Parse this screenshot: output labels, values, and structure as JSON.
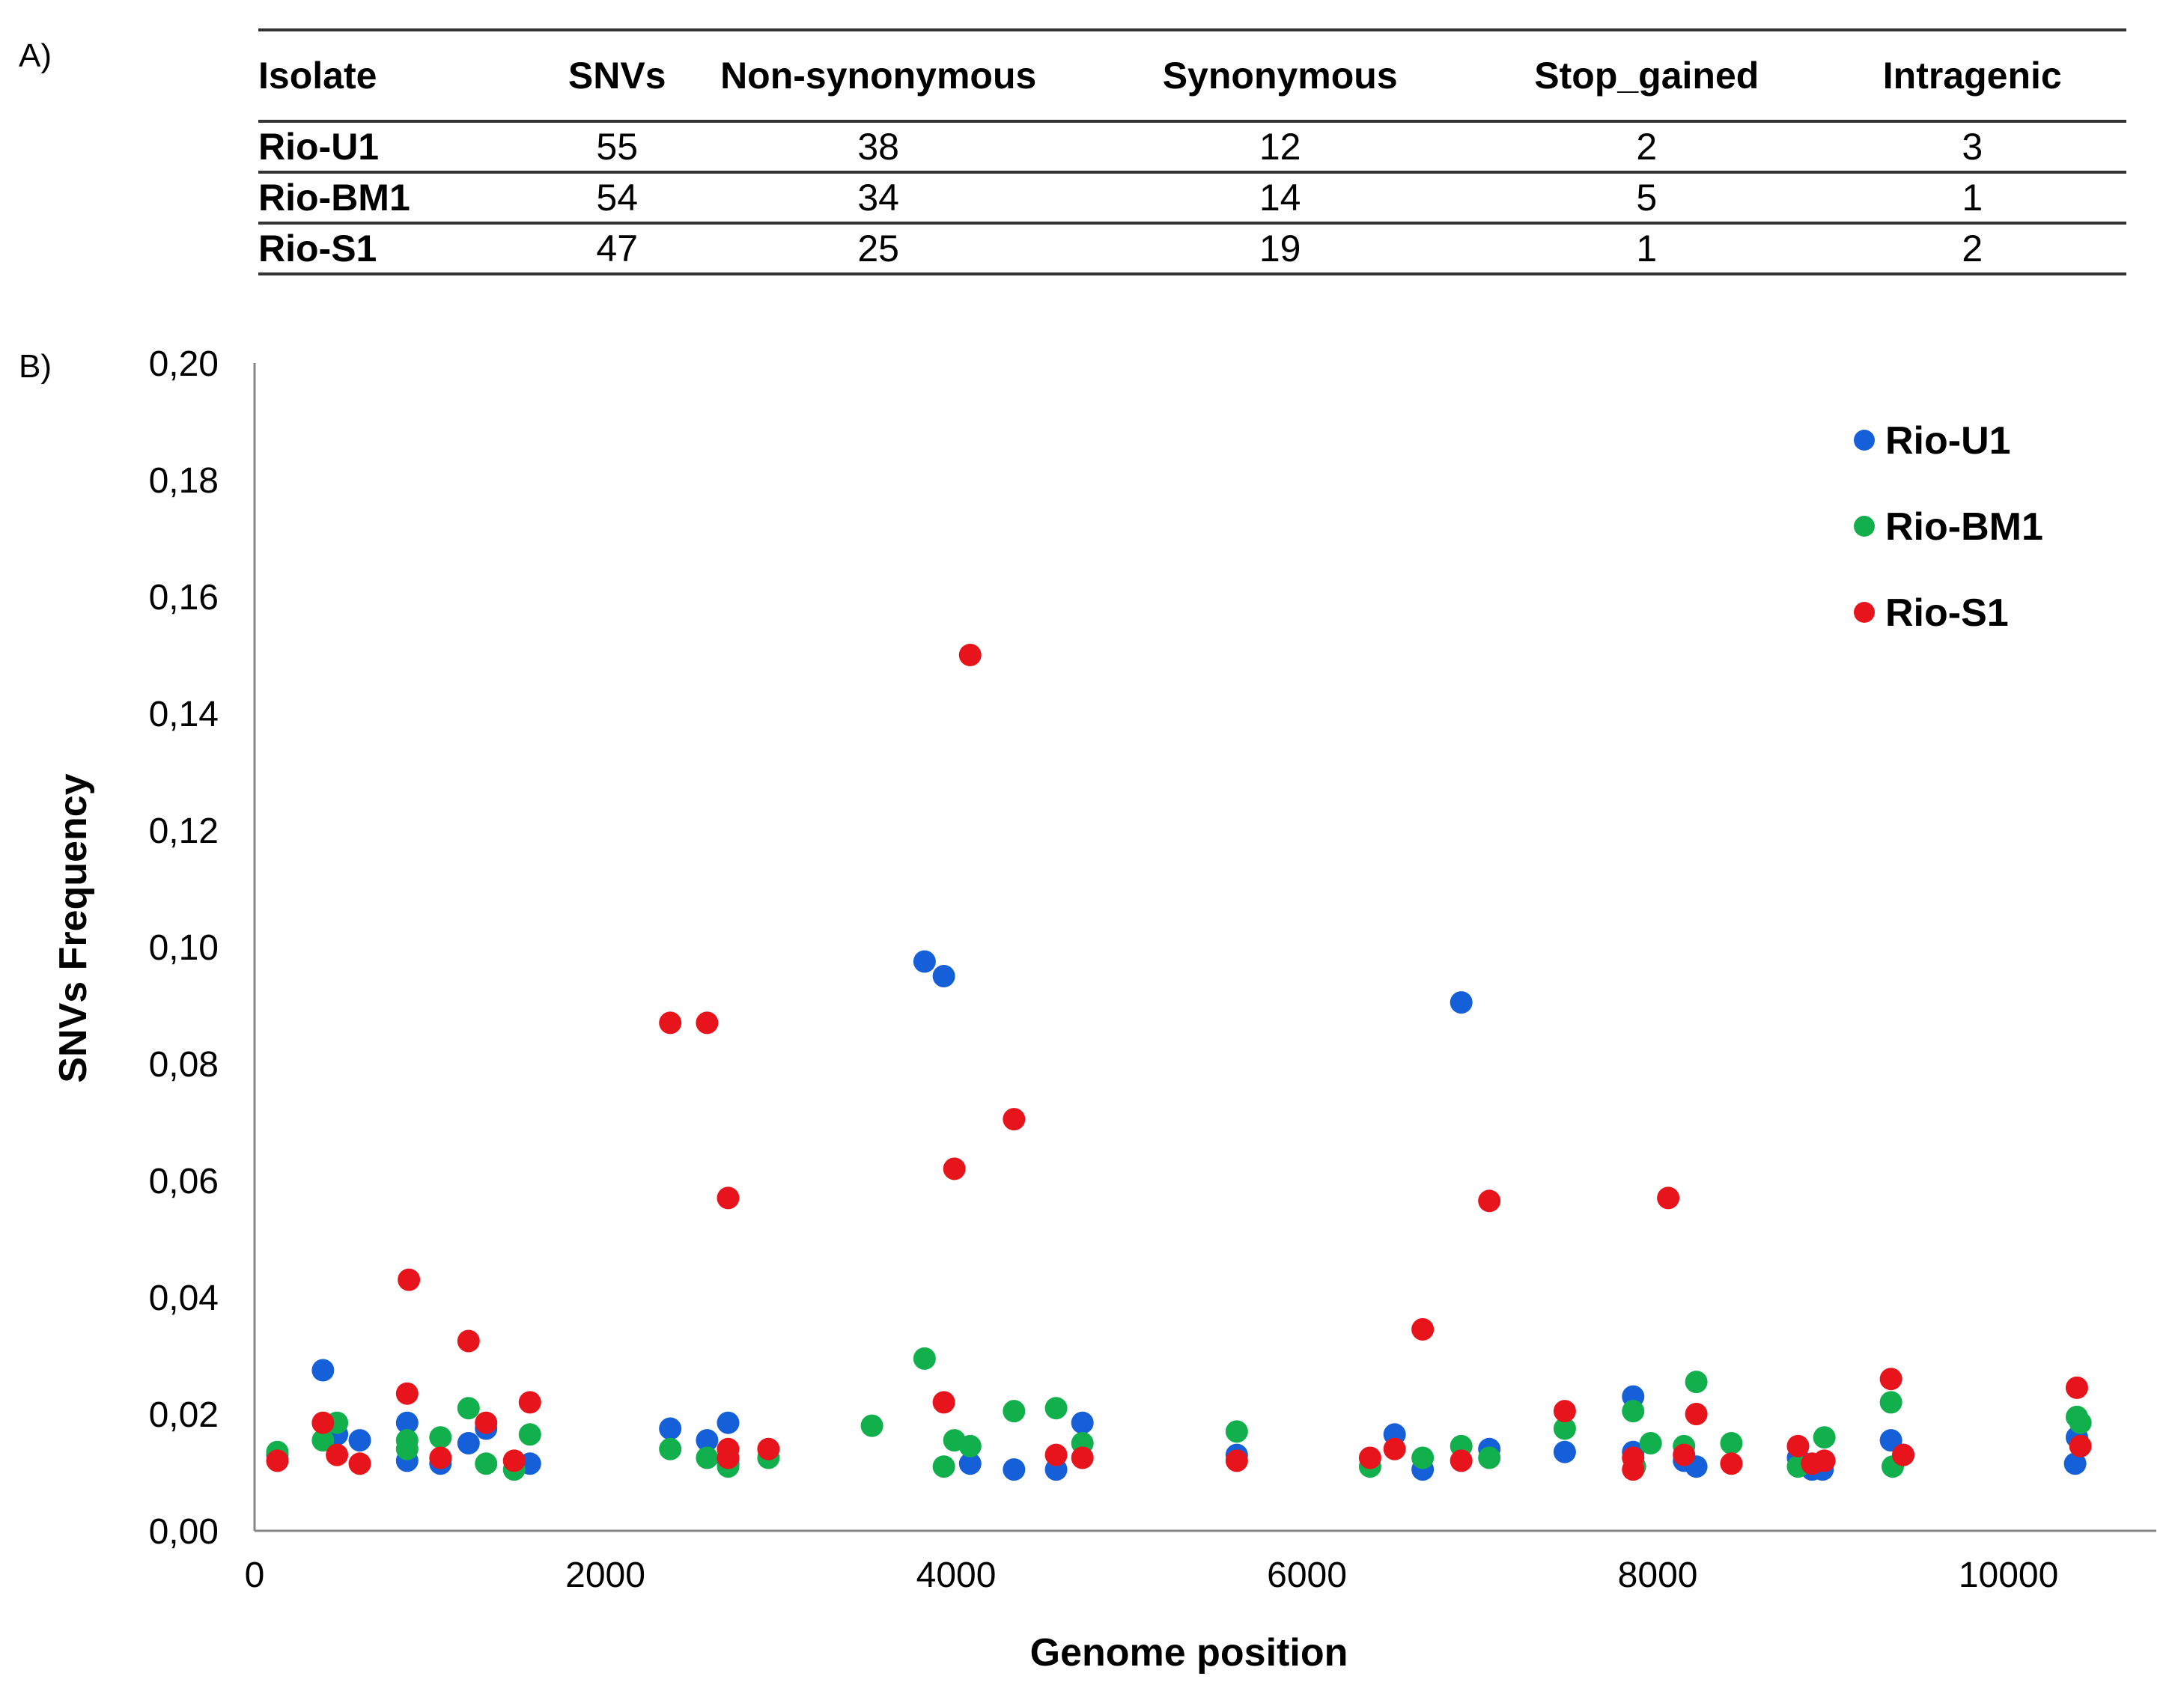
{
  "panel_labels": {
    "a": "A)",
    "b": "B)"
  },
  "table": {
    "columns": [
      "Isolate",
      "SNVs",
      "Non-synonymous",
      "Synonymous",
      "Stop_gained",
      "Intragenic"
    ],
    "rows": [
      [
        "Rio-U1",
        "55",
        "38",
        "12",
        "2",
        "3"
      ],
      [
        "Rio-BM1",
        "54",
        "34",
        "14",
        "5",
        "1"
      ],
      [
        "Rio-S1",
        "47",
        "25",
        "19",
        "1",
        "2"
      ]
    ]
  },
  "chart_data": {
    "type": "scatter",
    "title": "",
    "xlabel": "Genome position",
    "ylabel": "SNVs Frequency",
    "xlim": [
      0,
      10800
    ],
    "ylim": [
      0,
      0.2
    ],
    "xticks": [
      0,
      2000,
      4000,
      6000,
      8000,
      10000
    ],
    "xtick_labels": [
      "0",
      "2000",
      "4000",
      "6000",
      "8000",
      "10000"
    ],
    "yticks": [
      0,
      0.02,
      0.04,
      0.06,
      0.08,
      0.1,
      0.12,
      0.14,
      0.16,
      0.18,
      0.2
    ],
    "ytick_labels": [
      "0,00",
      "0,02",
      "0,04",
      "0,06",
      "0,08",
      "0,10",
      "0,12",
      "0,14",
      "0,16",
      "0,18",
      "0,20"
    ],
    "grid": false,
    "legend_position": "top-right",
    "series": [
      {
        "name": "Rio-U1",
        "color": "#1560d8",
        "points": [
          [
            130,
            0.013
          ],
          [
            390,
            0.0275
          ],
          [
            470,
            0.0165
          ],
          [
            600,
            0.0155
          ],
          [
            870,
            0.0185
          ],
          [
            870,
            0.012
          ],
          [
            1060,
            0.0115
          ],
          [
            1220,
            0.015
          ],
          [
            1320,
            0.0175
          ],
          [
            1570,
            0.0115
          ],
          [
            2370,
            0.0175
          ],
          [
            2580,
            0.0155
          ],
          [
            2700,
            0.0185
          ],
          [
            2700,
            0.0115
          ],
          [
            3820,
            0.0975
          ],
          [
            3930,
            0.095
          ],
          [
            4080,
            0.0115
          ],
          [
            4330,
            0.0105
          ],
          [
            4570,
            0.0105
          ],
          [
            4720,
            0.0185
          ],
          [
            5600,
            0.013
          ],
          [
            6500,
            0.0165
          ],
          [
            6660,
            0.0105
          ],
          [
            6880,
            0.0905
          ],
          [
            7040,
            0.014
          ],
          [
            7470,
            0.0135
          ],
          [
            7860,
            0.023
          ],
          [
            7860,
            0.0135
          ],
          [
            8150,
            0.012
          ],
          [
            8220,
            0.011
          ],
          [
            8800,
            0.0125
          ],
          [
            8880,
            0.0105
          ],
          [
            8940,
            0.0105
          ],
          [
            9330,
            0.0155
          ],
          [
            9400,
            0.013
          ],
          [
            10380,
            0.0115
          ],
          [
            10390,
            0.016
          ]
        ]
      },
      {
        "name": "Rio-BM1",
        "color": "#12b04d",
        "points": [
          [
            130,
            0.0135
          ],
          [
            390,
            0.0155
          ],
          [
            470,
            0.0185
          ],
          [
            870,
            0.0155
          ],
          [
            870,
            0.014
          ],
          [
            1060,
            0.016
          ],
          [
            1220,
            0.021
          ],
          [
            1320,
            0.0115
          ],
          [
            1480,
            0.0105
          ],
          [
            1570,
            0.0165
          ],
          [
            2370,
            0.014
          ],
          [
            2580,
            0.0125
          ],
          [
            2700,
            0.011
          ],
          [
            2930,
            0.0125
          ],
          [
            3520,
            0.018
          ],
          [
            3820,
            0.0295
          ],
          [
            3930,
            0.011
          ],
          [
            3990,
            0.0155
          ],
          [
            4080,
            0.0145
          ],
          [
            4330,
            0.0205
          ],
          [
            4570,
            0.021
          ],
          [
            4720,
            0.015
          ],
          [
            5600,
            0.017
          ],
          [
            6360,
            0.011
          ],
          [
            6660,
            0.0125
          ],
          [
            6880,
            0.0145
          ],
          [
            7040,
            0.0125
          ],
          [
            7470,
            0.0175
          ],
          [
            7860,
            0.0205
          ],
          [
            7870,
            0.011
          ],
          [
            7960,
            0.015
          ],
          [
            8150,
            0.0145
          ],
          [
            8220,
            0.0255
          ],
          [
            8420,
            0.015
          ],
          [
            8800,
            0.011
          ],
          [
            8950,
            0.016
          ],
          [
            9330,
            0.022
          ],
          [
            9340,
            0.011
          ],
          [
            10390,
            0.0195
          ],
          [
            10410,
            0.0185
          ]
        ]
      },
      {
        "name": "Rio-S1",
        "color": "#e8141c",
        "points": [
          [
            130,
            0.012
          ],
          [
            390,
            0.0185
          ],
          [
            470,
            0.013
          ],
          [
            600,
            0.0115
          ],
          [
            870,
            0.0235
          ],
          [
            880,
            0.043
          ],
          [
            1060,
            0.0125
          ],
          [
            1220,
            0.0325
          ],
          [
            1320,
            0.0185
          ],
          [
            1480,
            0.012
          ],
          [
            1570,
            0.022
          ],
          [
            2370,
            0.087
          ],
          [
            2580,
            0.087
          ],
          [
            2700,
            0.057
          ],
          [
            2700,
            0.014
          ],
          [
            2700,
            0.0125
          ],
          [
            2930,
            0.014
          ],
          [
            3930,
            0.022
          ],
          [
            3990,
            0.062
          ],
          [
            4080,
            0.15
          ],
          [
            4330,
            0.0705
          ],
          [
            4570,
            0.013
          ],
          [
            4720,
            0.0125
          ],
          [
            5600,
            0.012
          ],
          [
            6360,
            0.0125
          ],
          [
            6500,
            0.014
          ],
          [
            6660,
            0.0345
          ],
          [
            6880,
            0.012
          ],
          [
            7040,
            0.0565
          ],
          [
            7470,
            0.0205
          ],
          [
            7860,
            0.0105
          ],
          [
            7860,
            0.0125
          ],
          [
            8060,
            0.057
          ],
          [
            8150,
            0.013
          ],
          [
            8220,
            0.02
          ],
          [
            8420,
            0.0115
          ],
          [
            8800,
            0.0145
          ],
          [
            8880,
            0.0115
          ],
          [
            8950,
            0.012
          ],
          [
            9330,
            0.026
          ],
          [
            9400,
            0.013
          ],
          [
            10390,
            0.0245
          ],
          [
            10410,
            0.0145
          ]
        ]
      }
    ]
  }
}
